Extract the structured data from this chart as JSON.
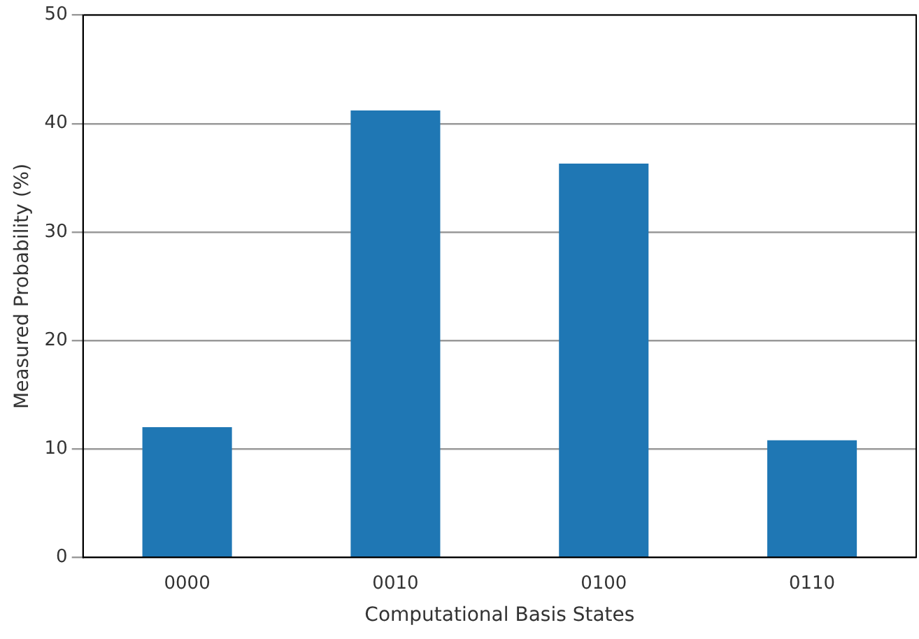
{
  "chart_data": {
    "type": "bar",
    "xlabel": "Computational Basis States",
    "ylabel": "Measured Probability (%)",
    "categories": [
      "0000",
      "0010",
      "0100",
      "0110"
    ],
    "values": [
      12.0,
      41.2,
      36.3,
      10.8
    ],
    "color": "#1f77b4",
    "ylim": [
      0,
      50
    ],
    "yticks": [
      0,
      10,
      20,
      30,
      40,
      50
    ],
    "grid": "y"
  }
}
